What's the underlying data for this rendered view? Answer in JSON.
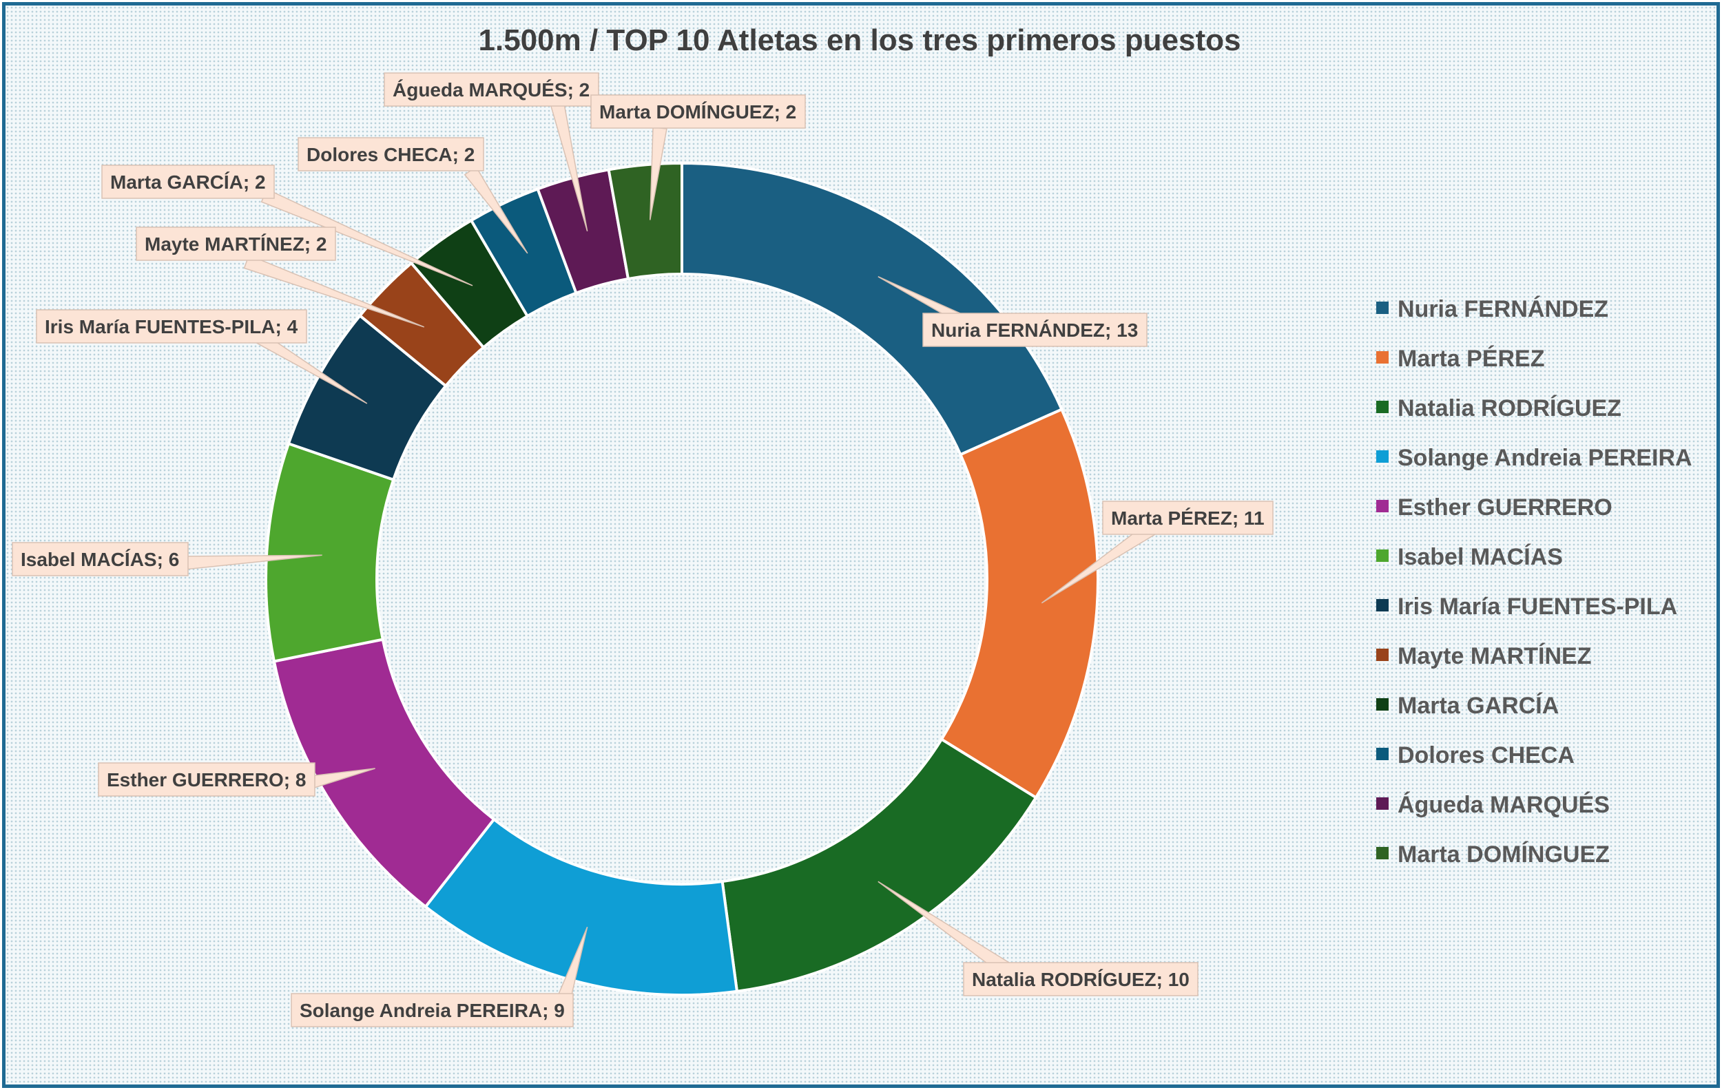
{
  "chart_data": {
    "type": "pie",
    "variant": "doughnut",
    "title": "1.500m / TOP 10 Atletas en los tres primeros puestos",
    "legend_position": "right",
    "categories": [
      "Nuria FERNÁNDEZ",
      "Marta PÉREZ",
      "Natalia RODRÍGUEZ",
      "Solange Andreia PEREIRA",
      "Esther GUERRERO",
      "Isabel MACÍAS",
      "Iris María FUENTES-PILA",
      "Mayte MARTÍNEZ",
      "Marta GARCÍA",
      "Dolores CHECA",
      "Águeda MARQUÉS",
      "Marta DOMÍNGUEZ"
    ],
    "values": [
      13,
      11,
      10,
      9,
      8,
      6,
      4,
      2,
      2,
      2,
      2,
      2
    ],
    "data_labels": [
      "Nuria FERNÁNDEZ; 13",
      "Marta PÉREZ; 11",
      "Natalia RODRÍGUEZ; 10",
      "Solange Andreia PEREIRA; 9",
      "Esther GUERRERO; 8",
      "Isabel MACÍAS; 6",
      "Iris María FUENTES-PILA; 4",
      "Mayte MARTÍNEZ; 2",
      "Marta GARCÍA; 2",
      "Dolores CHECA; 2",
      "Águeda MARQUÉS; 2",
      "Marta DOMÍNGUEZ; 2"
    ],
    "colors": [
      "#1a5f82",
      "#e97132",
      "#196b24",
      "#0f9ed5",
      "#a02b93",
      "#4ea72e",
      "#0e3a52",
      "#99431a",
      "#0f4015",
      "#0b5a7c",
      "#5e1a55",
      "#2f6323"
    ]
  }
}
